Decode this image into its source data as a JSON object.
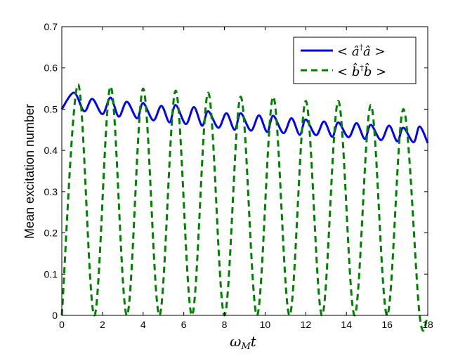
{
  "chart_data": {
    "type": "line",
    "xlabel": "ω_M t",
    "ylabel": "Mean excitation number",
    "xlim": [
      0,
      18
    ],
    "ylim": [
      0,
      0.7
    ],
    "xticks": [
      "0",
      "2",
      "4",
      "6",
      "8",
      "10",
      "12",
      "14",
      "16",
      "18"
    ],
    "yticks": [
      "0",
      "0.1",
      "0.2",
      "0.3",
      "0.4",
      "0.5",
      "0.6",
      "0.7"
    ],
    "grid": false,
    "legend_position": "top-right",
    "series": [
      {
        "name": "< â†â >",
        "color": "#0000ff",
        "style": "solid",
        "x": [
          0,
          0.6,
          1.1,
          1.5,
          2.0,
          2.4,
          2.8,
          3.2,
          3.7,
          4.0,
          4.5,
          4.9,
          5.3,
          5.6,
          6.1,
          6.5,
          6.9,
          7.2,
          7.7,
          8.1,
          8.5,
          8.8,
          9.3,
          9.7,
          10.1,
          10.4,
          10.9,
          11.3,
          11.7,
          12.0,
          12.5,
          12.9,
          13.3,
          13.6,
          14.1,
          14.5,
          14.9,
          15.2,
          15.7,
          16.1,
          16.5,
          16.8,
          17.3,
          17.6,
          18.0
        ],
        "y": [
          0.5,
          0.54,
          0.495,
          0.525,
          0.488,
          0.528,
          0.482,
          0.518,
          0.478,
          0.515,
          0.473,
          0.508,
          0.468,
          0.51,
          0.464,
          0.505,
          0.46,
          0.495,
          0.455,
          0.49,
          0.45,
          0.49,
          0.448,
          0.485,
          0.445,
          0.484,
          0.442,
          0.478,
          0.438,
          0.475,
          0.437,
          0.47,
          0.433,
          0.468,
          0.432,
          0.466,
          0.428,
          0.462,
          0.425,
          0.46,
          0.422,
          0.455,
          0.42,
          0.458,
          0.418
        ]
      },
      {
        "name": "< b̂†b̂ >",
        "color": "#008000",
        "style": "dashed",
        "x": [
          0,
          0.8,
          1.6,
          2.4,
          3.2,
          4.0,
          4.8,
          5.6,
          6.4,
          7.2,
          8.0,
          8.8,
          9.6,
          10.4,
          11.2,
          12.0,
          12.8,
          13.6,
          14.4,
          15.2,
          16.0,
          16.8,
          17.6,
          18.0
        ],
        "y": [
          0.0,
          0.56,
          0.0,
          0.555,
          0.0,
          0.55,
          0.0,
          0.545,
          0.0,
          0.54,
          0.0,
          0.53,
          0.0,
          0.53,
          0.0,
          0.52,
          0.0,
          0.52,
          0.0,
          0.51,
          0.0,
          0.5,
          0.0,
          0.0
        ]
      }
    ]
  }
}
